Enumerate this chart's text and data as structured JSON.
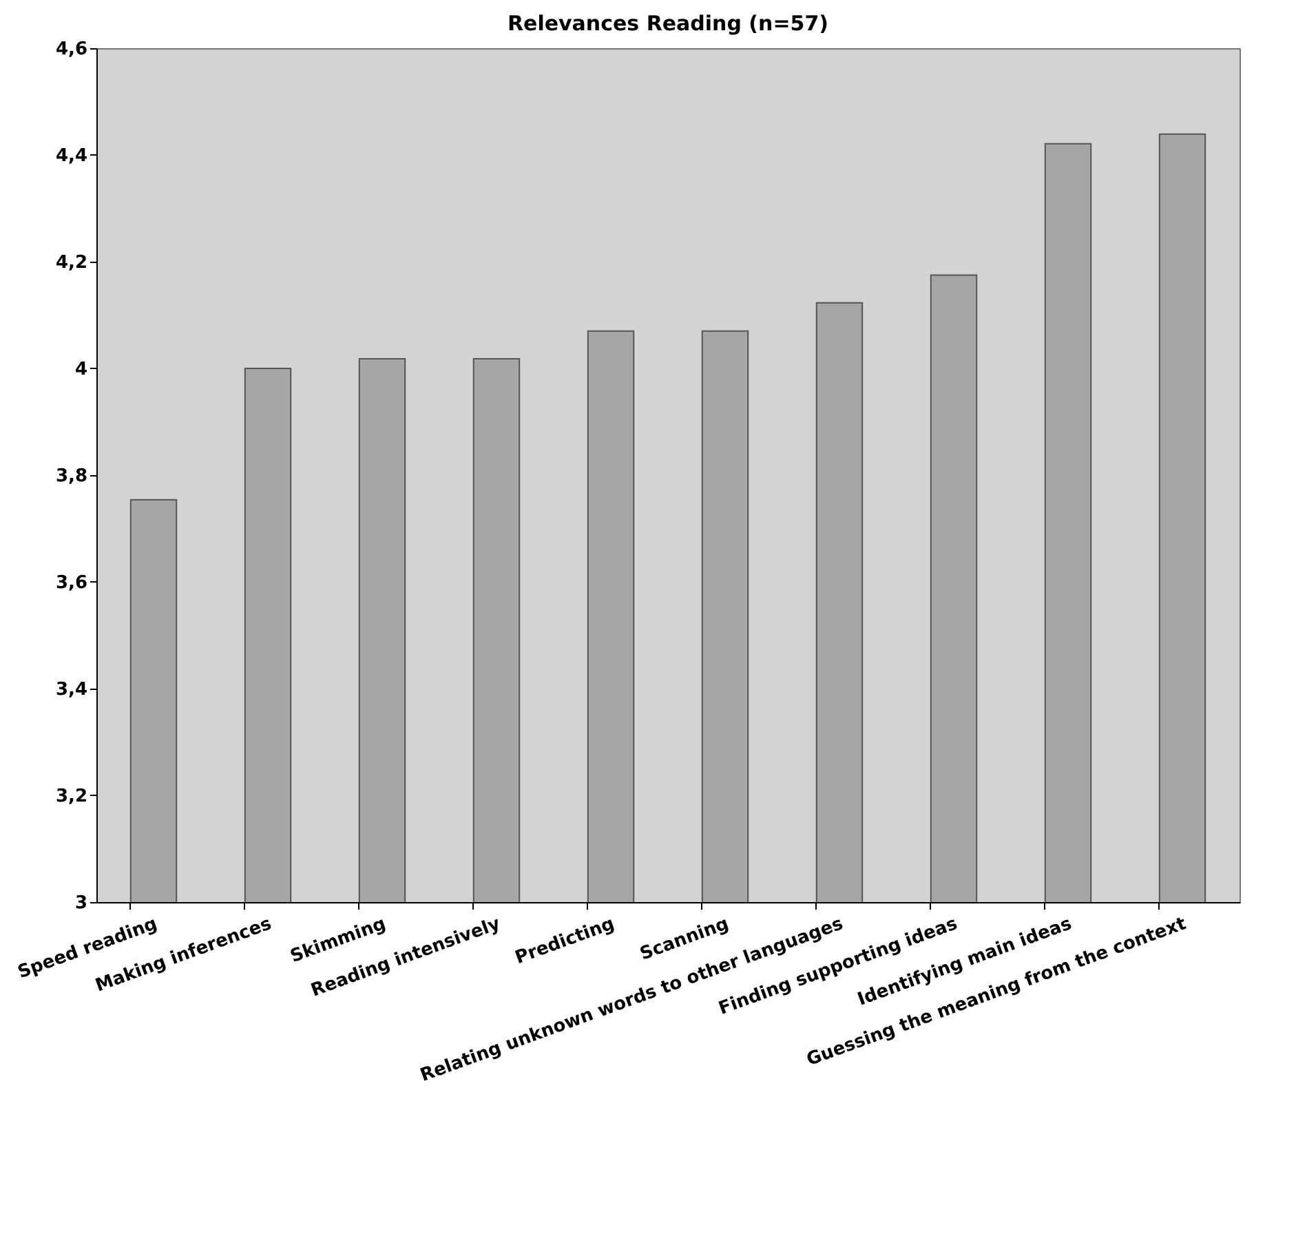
{
  "chart_data": {
    "type": "bar",
    "title": "Relevances Reading (n=57)",
    "categories": [
      "Speed reading",
      "Making inferences",
      "Skimming",
      "Reading intensively",
      "Predicting",
      "Scanning",
      "Relating unknown words to other languages",
      "Finding supporting ideas",
      "Identifying main ideas",
      "Guessing the meaning from the context"
    ],
    "values": [
      3.754,
      4.0,
      4.018,
      4.018,
      4.07,
      4.07,
      4.123,
      4.175,
      4.421,
      4.439
    ],
    "color": "#a6a6a6",
    "ylim": [
      3,
      4.6
    ],
    "yticks": [
      3,
      {
        "value": 3.2,
        "label": "3,2"
      },
      {
        "value": 3.4,
        "label": "3,4"
      },
      {
        "value": 3.6,
        "label": "3,6"
      },
      {
        "value": 3.8,
        "label": "3,8"
      },
      4,
      {
        "value": 4.2,
        "label": "4,2"
      },
      {
        "value": 4.4,
        "label": "4,4"
      },
      {
        "value": 4.6,
        "label": "4,6"
      }
    ],
    "grid": false
  }
}
